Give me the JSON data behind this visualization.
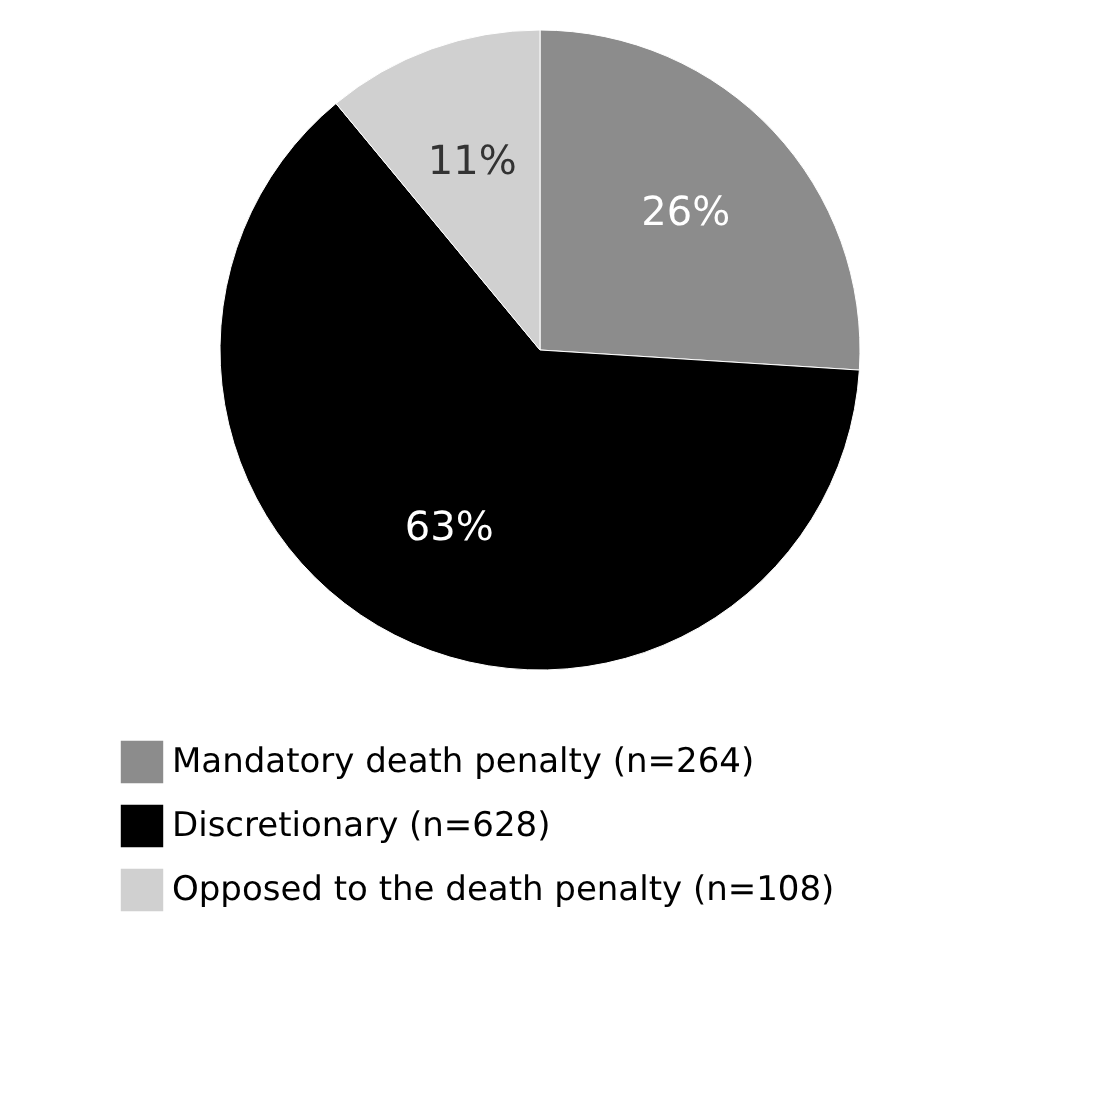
{
  "chart_data": {
    "type": "pie",
    "categories": [
      "Mandatory death penalty (n=264)",
      "Discretionary (n=628)",
      "Opposed to the death penalty (n=108)"
    ],
    "values": [
      26,
      63,
      11
    ],
    "value_labels": [
      "26%",
      "63%",
      "11%"
    ],
    "colors": [
      "#8c8c8c",
      "#000000",
      "#d0d0d0"
    ],
    "legend": "bottom"
  }
}
